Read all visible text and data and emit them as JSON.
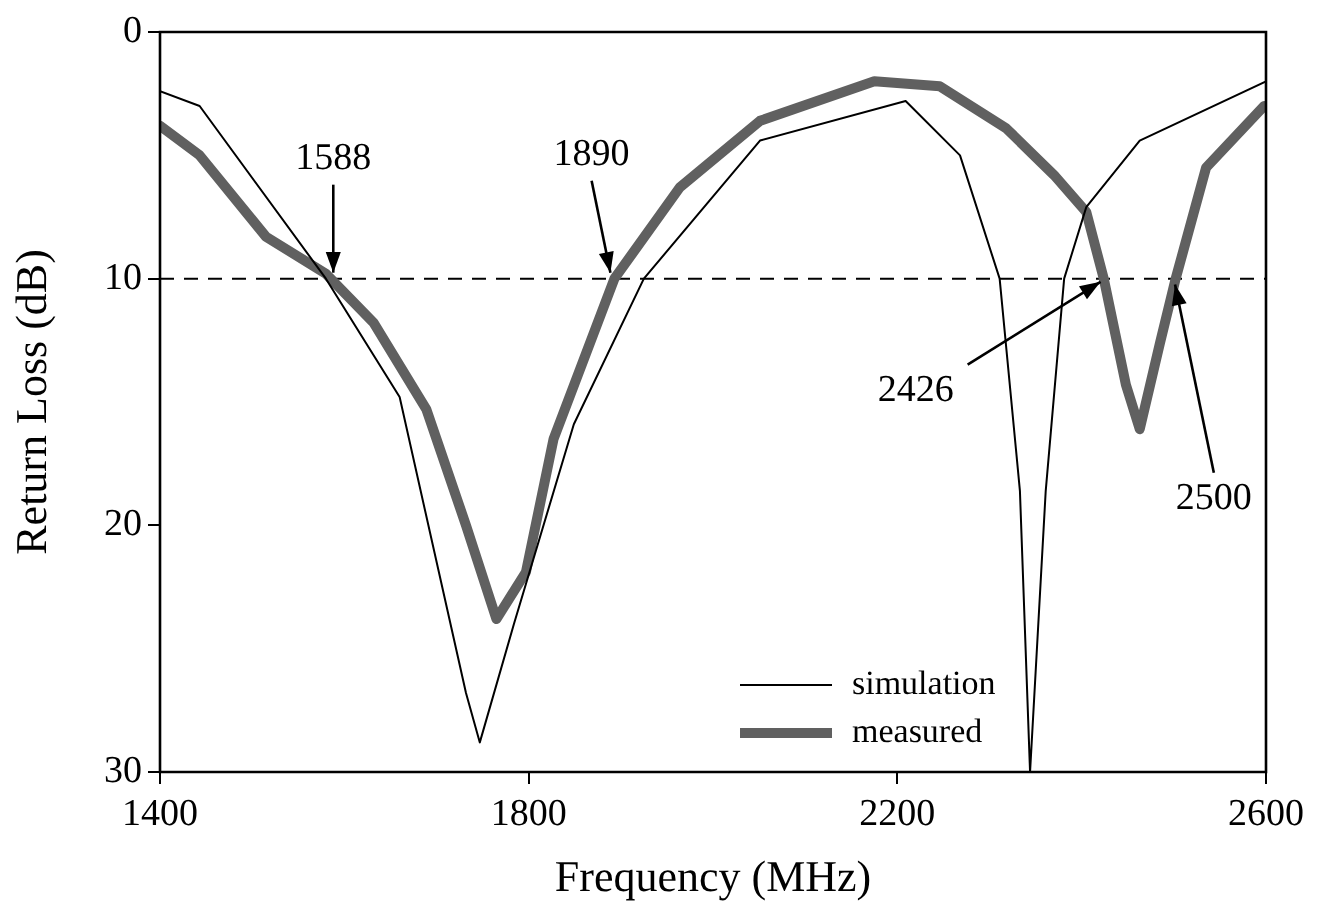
{
  "chart_data": {
    "type": "line",
    "xlabel": "Frequency (MHz)",
    "ylabel": "Return Loss (dB)",
    "xlim": [
      1400,
      2600
    ],
    "xticks": [
      1400,
      1800,
      2200,
      2600
    ],
    "ylim": [
      30,
      0
    ],
    "yticks": [
      0,
      10,
      20,
      30
    ],
    "grid": false,
    "legend": "bottom right",
    "marker": "none",
    "series": [
      {
        "name": "simulation",
        "color": "#000000",
        "line_style": "solid",
        "x": [
          1400,
          1443,
          1580,
          1660,
          1732,
          1747,
          1784,
          1849,
          1925,
          2051,
          2209,
          2268,
          2311,
          2333,
          2344,
          2361,
          2381,
          2405,
          2463,
          2600
        ],
        "values": [
          2.4,
          3.0,
          10,
          14.8,
          26.8,
          28.8,
          24,
          15.9,
          10,
          4.4,
          2.8,
          5.0,
          10,
          18.6,
          30,
          18.6,
          10,
          7.1,
          4.4,
          2.0
        ]
      },
      {
        "name": "measured",
        "color": "#606060",
        "line_style": "solid",
        "x": [
          1400,
          1443,
          1515,
          1580,
          1632,
          1689,
          1732,
          1765,
          1797,
          1827,
          1893,
          1964,
          2051,
          2175,
          2246,
          2318,
          2370,
          2405,
          2424,
          2448,
          2463,
          2485,
          2502,
          2535,
          2598
        ],
        "values": [
          3.8,
          5.0,
          8.3,
          9.8,
          11.8,
          15.3,
          20,
          23.8,
          21.9,
          16.5,
          10,
          6.3,
          3.6,
          2.0,
          2.2,
          3.9,
          5.8,
          7.3,
          10,
          14.3,
          16.1,
          12.6,
          10,
          5.5,
          3.0
        ]
      }
    ],
    "ref_lines": [
      {
        "axis": "y",
        "value": 10,
        "color": "#000000",
        "line_style": "dashed"
      }
    ],
    "annotations": [
      {
        "text": "1588",
        "x": 1588,
        "y": 10
      },
      {
        "text": "1890",
        "x": 1890,
        "y": 10
      },
      {
        "text": "2426",
        "x": 2426,
        "y": 10
      },
      {
        "text": "2500",
        "x": 2500,
        "y": 10
      }
    ]
  }
}
